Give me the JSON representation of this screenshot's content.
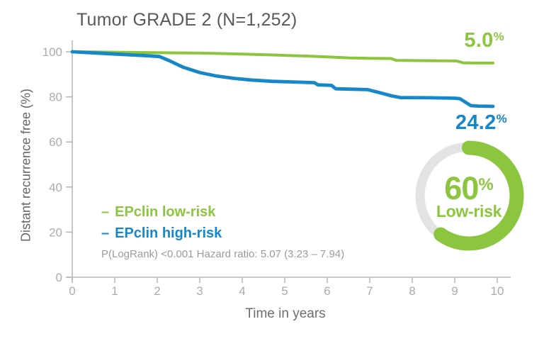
{
  "header": {
    "title": "Tumor GRADE 2 (N=1,252)"
  },
  "chart_data": [
    {
      "type": "line",
      "subtype": "kaplan-meier-survival",
      "title": "Tumor GRADE 2 (N=1,252)",
      "xlabel": "Time in years",
      "ylabel": "Distant recurrence free (%)",
      "xlim": [
        0,
        10
      ],
      "ylim": [
        0,
        100
      ],
      "x_ticks": [
        0,
        1,
        2,
        3,
        4,
        5,
        6,
        7,
        8,
        9,
        10
      ],
      "y_ticks": [
        100,
        80,
        60,
        40,
        20,
        0
      ],
      "grid": false,
      "legend_position": "inside-lower-left",
      "series": [
        {
          "name": "EPclin low-risk",
          "legend_dash": "–",
          "color": "#8CC63F",
          "line_width": 4,
          "end_label": {
            "value": "5.0",
            "unit": "%"
          },
          "points": [
            [
              0,
              100
            ],
            [
              0.5,
              99.9
            ],
            [
              1,
              99.8
            ],
            [
              1.5,
              99.7
            ],
            [
              2,
              99.6
            ],
            [
              2.5,
              99.5
            ],
            [
              3,
              99.4
            ],
            [
              3.5,
              99.2
            ],
            [
              4,
              99.0
            ],
            [
              4.5,
              98.7
            ],
            [
              5,
              98.4
            ],
            [
              5.5,
              98.1
            ],
            [
              6,
              97.7
            ],
            [
              6.5,
              97.3
            ],
            [
              7,
              97.1
            ],
            [
              7.5,
              97.0
            ],
            [
              7.62,
              96.2
            ],
            [
              8,
              96.1
            ],
            [
              8.6,
              96.0
            ],
            [
              9.05,
              95.9
            ],
            [
              9.2,
              95.1
            ],
            [
              9.5,
              95.0
            ],
            [
              9.9,
              95.0
            ]
          ]
        },
        {
          "name": "EPclin high-risk",
          "legend_dash": "–",
          "color": "#1688C9",
          "line_width": 4.8,
          "end_label": {
            "value": "24.2",
            "unit": "%"
          },
          "points": [
            [
              0,
              100
            ],
            [
              0.3,
              99.7
            ],
            [
              0.7,
              99.3
            ],
            [
              1,
              99.0
            ],
            [
              1.4,
              98.6
            ],
            [
              1.8,
              98.2
            ],
            [
              2.05,
              97.9
            ],
            [
              2.3,
              95.9
            ],
            [
              2.6,
              93.2
            ],
            [
              3,
              90.8
            ],
            [
              3.4,
              89.2
            ],
            [
              3.8,
              88.2
            ],
            [
              4.2,
              87.5
            ],
            [
              4.7,
              86.9
            ],
            [
              5.2,
              86.6
            ],
            [
              5.7,
              86.3
            ],
            [
              5.78,
              85.3
            ],
            [
              6.1,
              85.1
            ],
            [
              6.2,
              83.6
            ],
            [
              6.6,
              83.4
            ],
            [
              6.95,
              83.2
            ],
            [
              7.2,
              82.0
            ],
            [
              7.5,
              80.5
            ],
            [
              7.72,
              79.7
            ],
            [
              8.4,
              79.6
            ],
            [
              9.0,
              79.4
            ],
            [
              9.12,
              79.2
            ],
            [
              9.38,
              76.1
            ],
            [
              9.55,
              75.9
            ],
            [
              9.9,
              75.8
            ]
          ]
        }
      ],
      "stats_annotation": "P(LogRank) <0.001 Hazard ratio: 5.07 (3.23 – 7.94)"
    },
    {
      "type": "donut",
      "value_pct": 60,
      "center_value": "60",
      "center_unit": "%",
      "center_label": "Low-risk",
      "color": "#8CC63F",
      "track_color": "#E3E3E3"
    }
  ]
}
